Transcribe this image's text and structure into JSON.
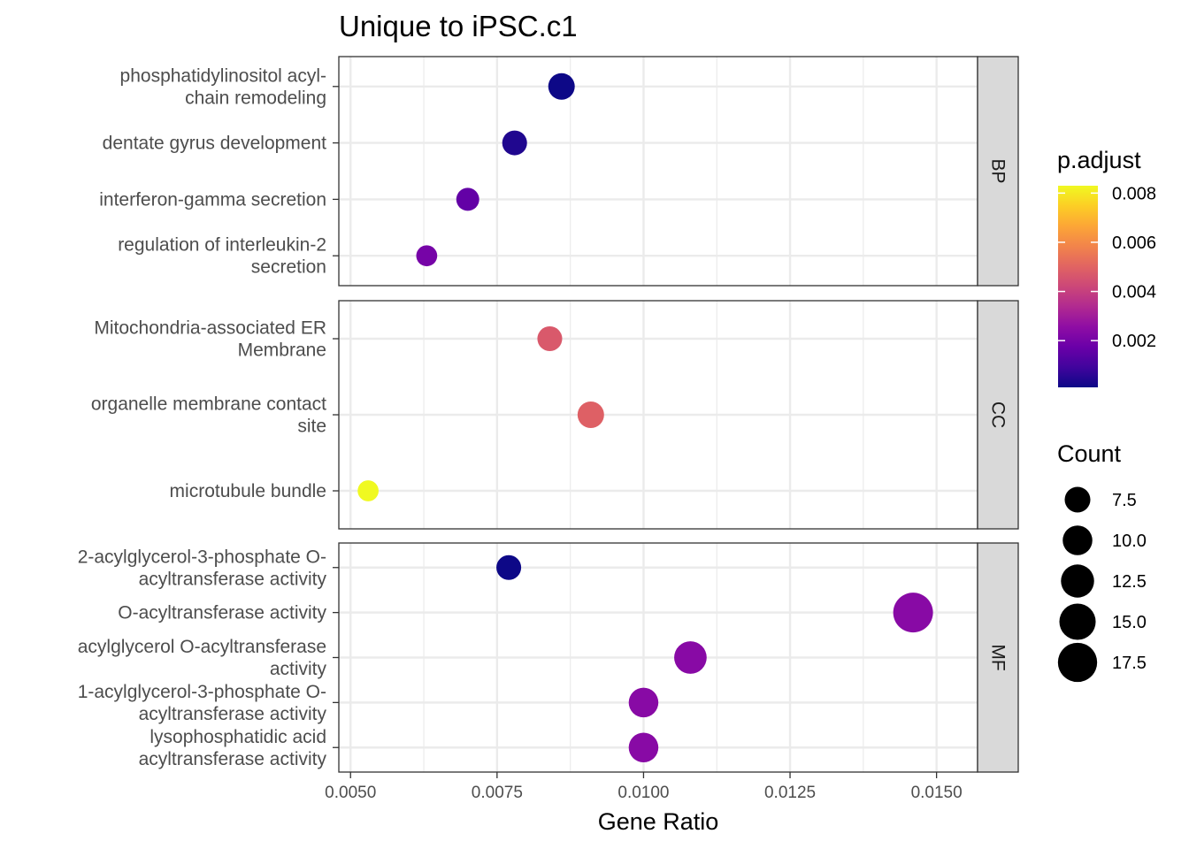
{
  "chart_data": {
    "type": "scatter",
    "title": "Unique to iPSC.c1",
    "xlabel": "Gene Ratio",
    "ylabel": "",
    "xlim": [
      0.0048,
      0.0157
    ],
    "x_ticks": [
      "0.0050",
      "0.0075",
      "0.0100",
      "0.0125",
      "0.0150"
    ],
    "x_tick_values": [
      0.005,
      0.0075,
      0.01,
      0.0125,
      0.015
    ],
    "grid": true,
    "panels": [
      {
        "name": "BP",
        "points": [
          {
            "label": "phosphatidylinositol acyl-\nchain remodeling",
            "x": 0.0086,
            "p_adjust": 0.0001,
            "count": 8
          },
          {
            "label": "dentate gyrus development",
            "x": 0.0078,
            "p_adjust": 0.0004,
            "count": 7
          },
          {
            "label": "interferon-gamma secretion",
            "x": 0.007,
            "p_adjust": 0.0016,
            "count": 6
          },
          {
            "label": "regulation of interleukin-2\nsecretion",
            "x": 0.0063,
            "p_adjust": 0.002,
            "count": 5
          }
        ]
      },
      {
        "name": "CC",
        "points": [
          {
            "label": "Mitochondria-associated ER\nMembrane",
            "x": 0.0084,
            "p_adjust": 0.0047,
            "count": 7
          },
          {
            "label": "organelle membrane contact\nsite",
            "x": 0.0091,
            "p_adjust": 0.0049,
            "count": 8
          },
          {
            "label": "microtubule bundle",
            "x": 0.0053,
            "p_adjust": 0.0083,
            "count": 5
          }
        ]
      },
      {
        "name": "MF",
        "points": [
          {
            "label": "2-acylglycerol-3-phosphate O-\nacyltransferase activity",
            "x": 0.0077,
            "p_adjust": 0.0001,
            "count": 7
          },
          {
            "label": "O-acyltransferase activity",
            "x": 0.0146,
            "p_adjust": 0.0024,
            "count": 18
          },
          {
            "label": "acylglycerol O-acyltransferase\nactivity",
            "x": 0.0108,
            "p_adjust": 0.0024,
            "count": 12
          },
          {
            "label": "1-acylglycerol-3-phosphate O-\nacyltransferase activity",
            "x": 0.01,
            "p_adjust": 0.0024,
            "count": 10
          },
          {
            "label": "lysophosphatidic acid\nacyltransferase activity",
            "x": 0.01,
            "p_adjust": 0.0024,
            "count": 10
          }
        ]
      }
    ],
    "color_legend": {
      "title": "p.adjust",
      "scale": "plasma",
      "range": [
        0.0001,
        0.0083
      ],
      "ticks": [
        0.002,
        0.004,
        0.006,
        0.008
      ],
      "tick_labels": [
        "0.002",
        "0.004",
        "0.006",
        "0.008"
      ]
    },
    "size_legend": {
      "title": "Count",
      "values": [
        7.5,
        10.0,
        12.5,
        15.0,
        17.5
      ],
      "labels": [
        "7.5",
        "10.0",
        "12.5",
        "15.0",
        "17.5"
      ]
    },
    "legend_position": "right"
  }
}
